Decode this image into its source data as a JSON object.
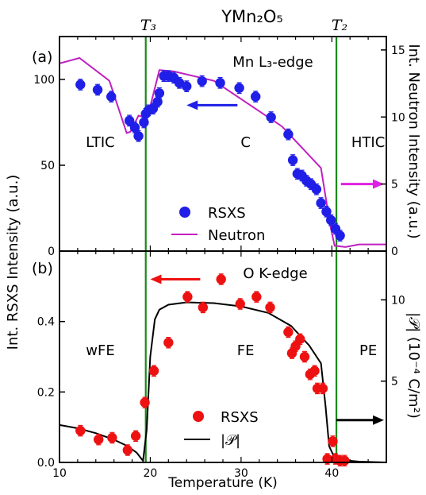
{
  "figure_title": "YMn₂O₅",
  "top_markers": {
    "t3": {
      "label": "T₃",
      "x": 19.5
    },
    "t2": {
      "label": "T₂",
      "x": 40.5
    }
  },
  "chart_data": [
    {
      "type": "scatter",
      "panel": "(a)",
      "title": "Mn L₃-edge",
      "xlim": [
        10,
        46
      ],
      "ylim": [
        0,
        125
      ],
      "y2lim": [
        0,
        16
      ],
      "ylabel": "Int. RSXS Intensity (a.u.)",
      "y2label": "Int. Neutron Intensity (a.u.)",
      "yticks": [
        "0",
        "50",
        "100"
      ],
      "y2ticks": [
        "0",
        "5",
        "10",
        "15"
      ],
      "region_labels": [
        {
          "text": "LTIC",
          "x": 14.5,
          "y": 64
        },
        {
          "text": "C",
          "x": 30.5,
          "y": 64
        },
        {
          "text": "HTIC",
          "x": 44,
          "y": 64
        }
      ],
      "legend": {
        "marker": "RSXS",
        "line": "Neutron",
        "placement": "lower-center"
      },
      "colors": {
        "marker": "#1f1fe8",
        "line": "#c020c0",
        "vline": "#1a8a1a"
      },
      "series": [
        {
          "name": "RSXS",
          "axis": "left",
          "x": [
            12.3,
            14.2,
            15.7,
            17.7,
            18.3,
            18.7,
            19.3,
            19.5,
            19.8,
            20.3,
            20.8,
            21.0,
            21.5,
            22.0,
            22.6,
            23.2,
            24.0,
            25.7,
            27.7,
            29.8,
            31.6,
            33.3,
            35.2,
            35.7,
            36.2,
            36.7,
            37.2,
            37.7,
            38.3,
            38.8,
            39.4,
            39.9,
            40.4,
            40.9
          ],
          "y": [
            97,
            94,
            90,
            76,
            72,
            67,
            75,
            80,
            82,
            83,
            87,
            92,
            102,
            102,
            101,
            98,
            96,
            99,
            98,
            95,
            90,
            78,
            68,
            53,
            45,
            44,
            41,
            39,
            36,
            28,
            23,
            18,
            13,
            9
          ]
        },
        {
          "name": "Neutron",
          "axis": "right",
          "x": [
            10,
            12.2,
            15.5,
            17.4,
            17.8,
            18.7,
            19.3,
            20.0,
            21.0,
            22.6,
            27.0,
            34.5,
            38.8,
            39.8,
            40.3,
            41.5,
            43.0,
            46.0
          ],
          "y": [
            14.0,
            14.4,
            12.7,
            8.8,
            8.9,
            10.1,
            10.0,
            10.8,
            13.5,
            13.4,
            12.7,
            9.3,
            6.2,
            2.0,
            0.4,
            0.3,
            0.5,
            0.5
          ]
        }
      ],
      "arrows": [
        {
          "direction": "left",
          "axis": "left",
          "x_from": 29.6,
          "x_to": 24.0,
          "y": 85,
          "color": "#1f1fe8"
        },
        {
          "direction": "right",
          "axis": "right",
          "x_from": 41.0,
          "x_to": 46.5,
          "y": 5,
          "color": "#e020e0"
        }
      ]
    },
    {
      "type": "scatter",
      "panel": "(b)",
      "title": "O K-edge",
      "xlim": [
        10,
        46
      ],
      "ylim": [
        0,
        0.6
      ],
      "y2lim": [
        0,
        13
      ],
      "xlabel": "Temperature (K)",
      "xticks": [
        "10",
        "20",
        "30",
        "40"
      ],
      "yticks": [
        "0.0",
        "0.2",
        "0.4"
      ],
      "y2ticks": [
        "5",
        "10"
      ],
      "y2label": "|𝒫| (10⁻⁴ C/m²)",
      "region_labels": [
        {
          "text": "wFE",
          "x": 14.5,
          "y": 0.32
        },
        {
          "text": "FE",
          "x": 30.5,
          "y": 0.32
        },
        {
          "text": "PE",
          "x": 44,
          "y": 0.32
        }
      ],
      "legend": {
        "marker": "RSXS",
        "line": "|𝒫|",
        "placement": "lower-center"
      },
      "colors": {
        "marker": "#ee1111",
        "line": "#000000",
        "vline": "#1a8a1a"
      },
      "series": [
        {
          "name": "RSXS",
          "axis": "left",
          "x": [
            12.3,
            14.3,
            15.8,
            17.5,
            18.4,
            19.4,
            20.4,
            22.0,
            24.1,
            25.8,
            27.8,
            29.9,
            31.7,
            33.2,
            35.2,
            35.6,
            36.0,
            36.5,
            37.0,
            37.6,
            38.1,
            38.4,
            39.0,
            39.5,
            40.1,
            40.4,
            40.9,
            41.4
          ],
          "y": [
            0.09,
            0.065,
            0.07,
            0.035,
            0.075,
            0.17,
            0.26,
            0.34,
            0.47,
            0.44,
            0.52,
            0.45,
            0.47,
            0.44,
            0.37,
            0.31,
            0.33,
            0.35,
            0.3,
            0.25,
            0.26,
            0.21,
            0.21,
            0.01,
            0.06,
            0.01,
            0.005,
            0.005
          ]
        },
        {
          "name": "|𝒫|",
          "axis": "right",
          "x": [
            10,
            12,
            14,
            16,
            17.5,
            18.5,
            19.2,
            19.6,
            20.0,
            20.5,
            21.0,
            22.0,
            24.0,
            27.0,
            30.0,
            33.0,
            35.5,
            37.5,
            38.8,
            39.3,
            39.7,
            40.2,
            41.0,
            43.0,
            46.0
          ],
          "y": [
            2.3,
            2.1,
            1.8,
            1.4,
            1.0,
            0.6,
            0.1,
            2.0,
            6.5,
            8.8,
            9.4,
            9.7,
            9.85,
            9.8,
            9.6,
            9.2,
            8.4,
            7.2,
            6.1,
            3.5,
            1.0,
            0.4,
            0.15,
            0.05,
            0.0
          ]
        }
      ],
      "arrows": [
        {
          "direction": "left",
          "axis": "left",
          "x_from": 25.5,
          "x_to": 20.0,
          "y": 0.52,
          "color": "#ee1111"
        },
        {
          "direction": "right",
          "axis": "right",
          "x_from": 40.5,
          "x_to": 47.5,
          "y": 2.6,
          "color": "#000000"
        }
      ]
    }
  ]
}
